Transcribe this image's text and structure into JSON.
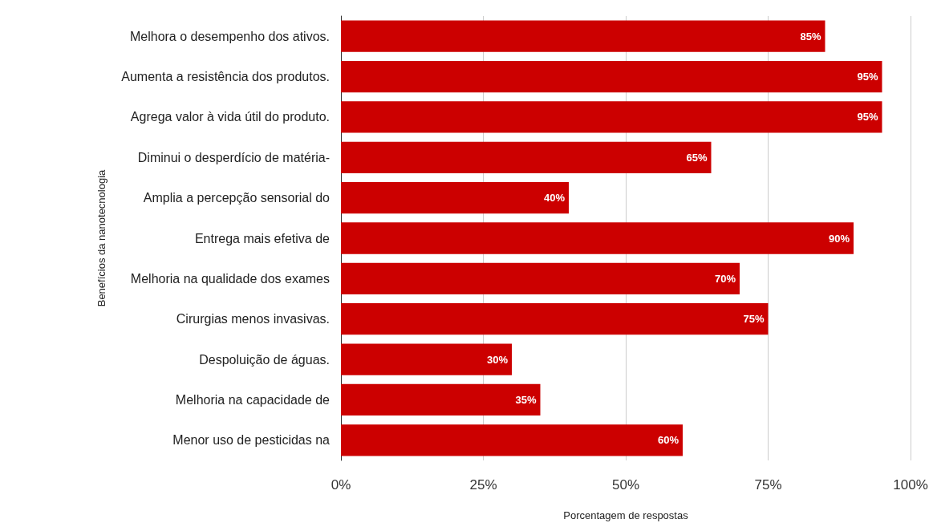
{
  "chart_data": {
    "type": "bar",
    "orientation": "horizontal",
    "xlabel": "Porcentagem de respostas",
    "ylabel": "Benefícios da nanotecnologia",
    "categories": [
      "Melhora o desempenho dos ativos.",
      "Aumenta a resistência dos produtos.",
      "Agrega valor à vida útil do produto.",
      "Diminui o desperdício de matéria-",
      "Amplia a percepção sensorial do",
      "Entrega mais efetiva de",
      "Melhoria na qualidade dos exames",
      "Cirurgias menos invasivas.",
      "Despoluição de águas.",
      "Melhoria na capacidade de",
      "Menor uso de pesticidas na"
    ],
    "values": [
      85,
      95,
      95,
      65,
      40,
      90,
      70,
      75,
      30,
      35,
      60
    ],
    "value_labels": [
      "85%",
      "95%",
      "95%",
      "65%",
      "40%",
      "90%",
      "70%",
      "75%",
      "30%",
      "35%",
      "60%"
    ],
    "color": "#cc0000",
    "xlim": [
      0,
      100
    ],
    "xticks": [
      {
        "value": 0,
        "label": "0%"
      },
      {
        "value": 25,
        "label": "25%"
      },
      {
        "value": 50,
        "label": "50%"
      },
      {
        "value": 75,
        "label": "75%"
      },
      {
        "value": 100,
        "label": "100%"
      }
    ],
    "grid": "x"
  }
}
